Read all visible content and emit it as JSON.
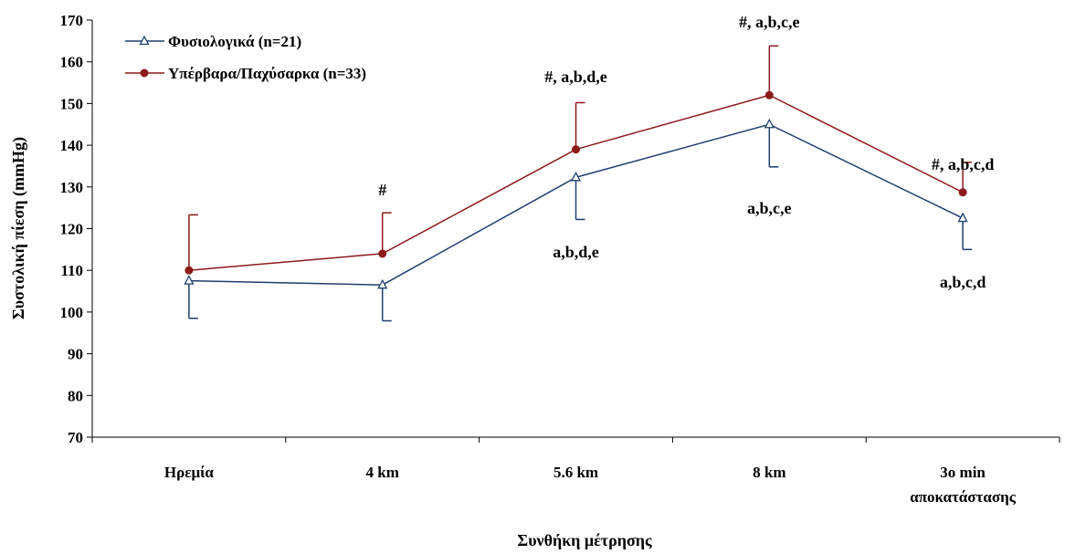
{
  "chart_data": {
    "type": "line",
    "title": "",
    "xlabel": "Συνθήκη μέτρησης",
    "ylabel": "Συστολική πίεση (mmHg)",
    "ylim": [
      70,
      170
    ],
    "yticks": [
      70,
      80,
      90,
      100,
      110,
      120,
      130,
      140,
      150,
      160,
      170
    ],
    "categories": [
      [
        "Ηρεμία"
      ],
      [
        "4 km"
      ],
      [
        "5.6 km"
      ],
      [
        "8 km"
      ],
      [
        "3o  min",
        "αποκατάστασης"
      ]
    ],
    "grid": false,
    "legend_position": "top-left",
    "series": [
      {
        "name": "Φυσιολογικά (n=21)",
        "color": "#1f3f6e",
        "marker": "open-triangle",
        "values": [
          107.5,
          106.5,
          132.3,
          145,
          122.5
        ],
        "error_minus": [
          9,
          8.6,
          10.1,
          10.2,
          7.5
        ]
      },
      {
        "name": "Υπέρβαρα/Παχύσαρκα (n=33)",
        "color": "#8b1a1a",
        "marker": "filled-circle",
        "values": [
          110,
          114,
          139,
          152,
          128.7
        ],
        "error_plus": [
          13.3,
          9.8,
          11.2,
          11.8,
          7.2
        ]
      }
    ],
    "annotations_above": [
      "",
      "#",
      "#, a,b,d,e",
      "#, a,b,c,e",
      "#, a,b,c,d"
    ],
    "annotations_below": [
      "",
      "",
      "a,b,d,e",
      "a,b,c,e",
      "a,b,c,d"
    ]
  }
}
